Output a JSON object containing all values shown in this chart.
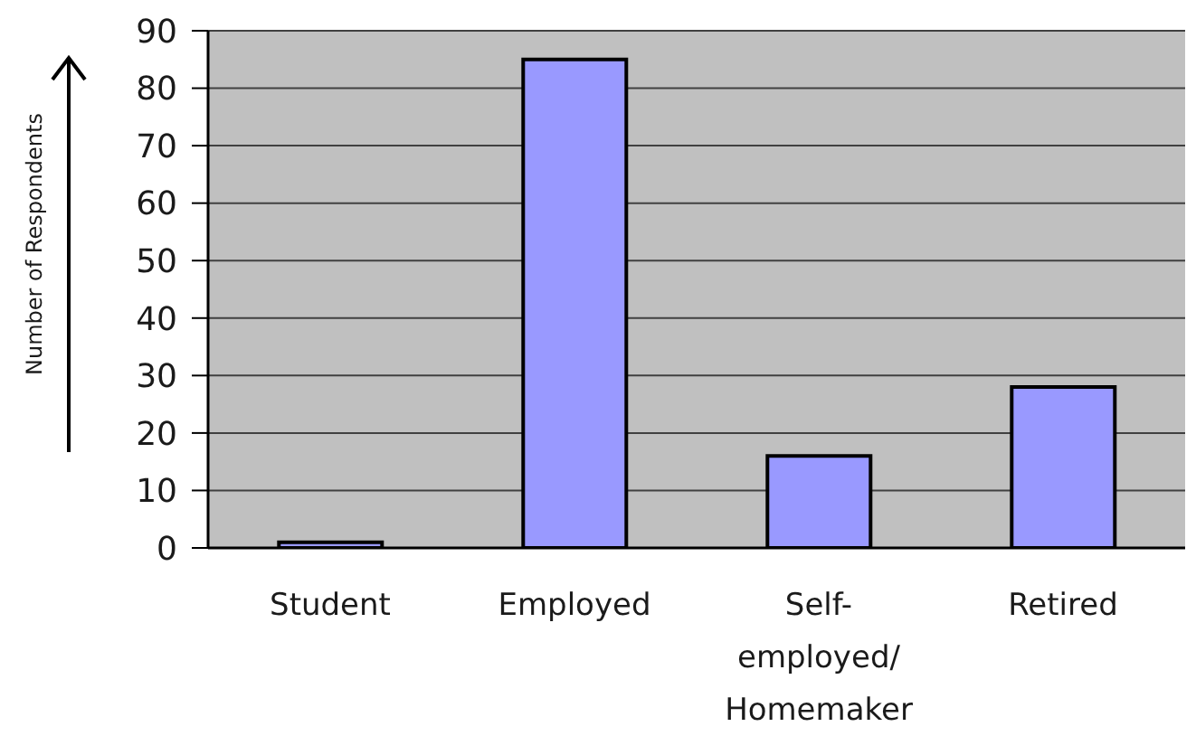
{
  "chart_data": {
    "type": "bar",
    "ylabel": "Number of Respondents",
    "categories": [
      "Student",
      "Employed",
      "Self-employed/Homemaker",
      "Retired"
    ],
    "values": [
      1,
      85,
      16,
      28
    ],
    "color": "#9999ff",
    "ylim": [
      0,
      90
    ],
    "yticks": [
      0,
      10,
      20,
      30,
      40,
      50,
      60,
      70,
      80,
      90
    ],
    "grid": "y"
  }
}
